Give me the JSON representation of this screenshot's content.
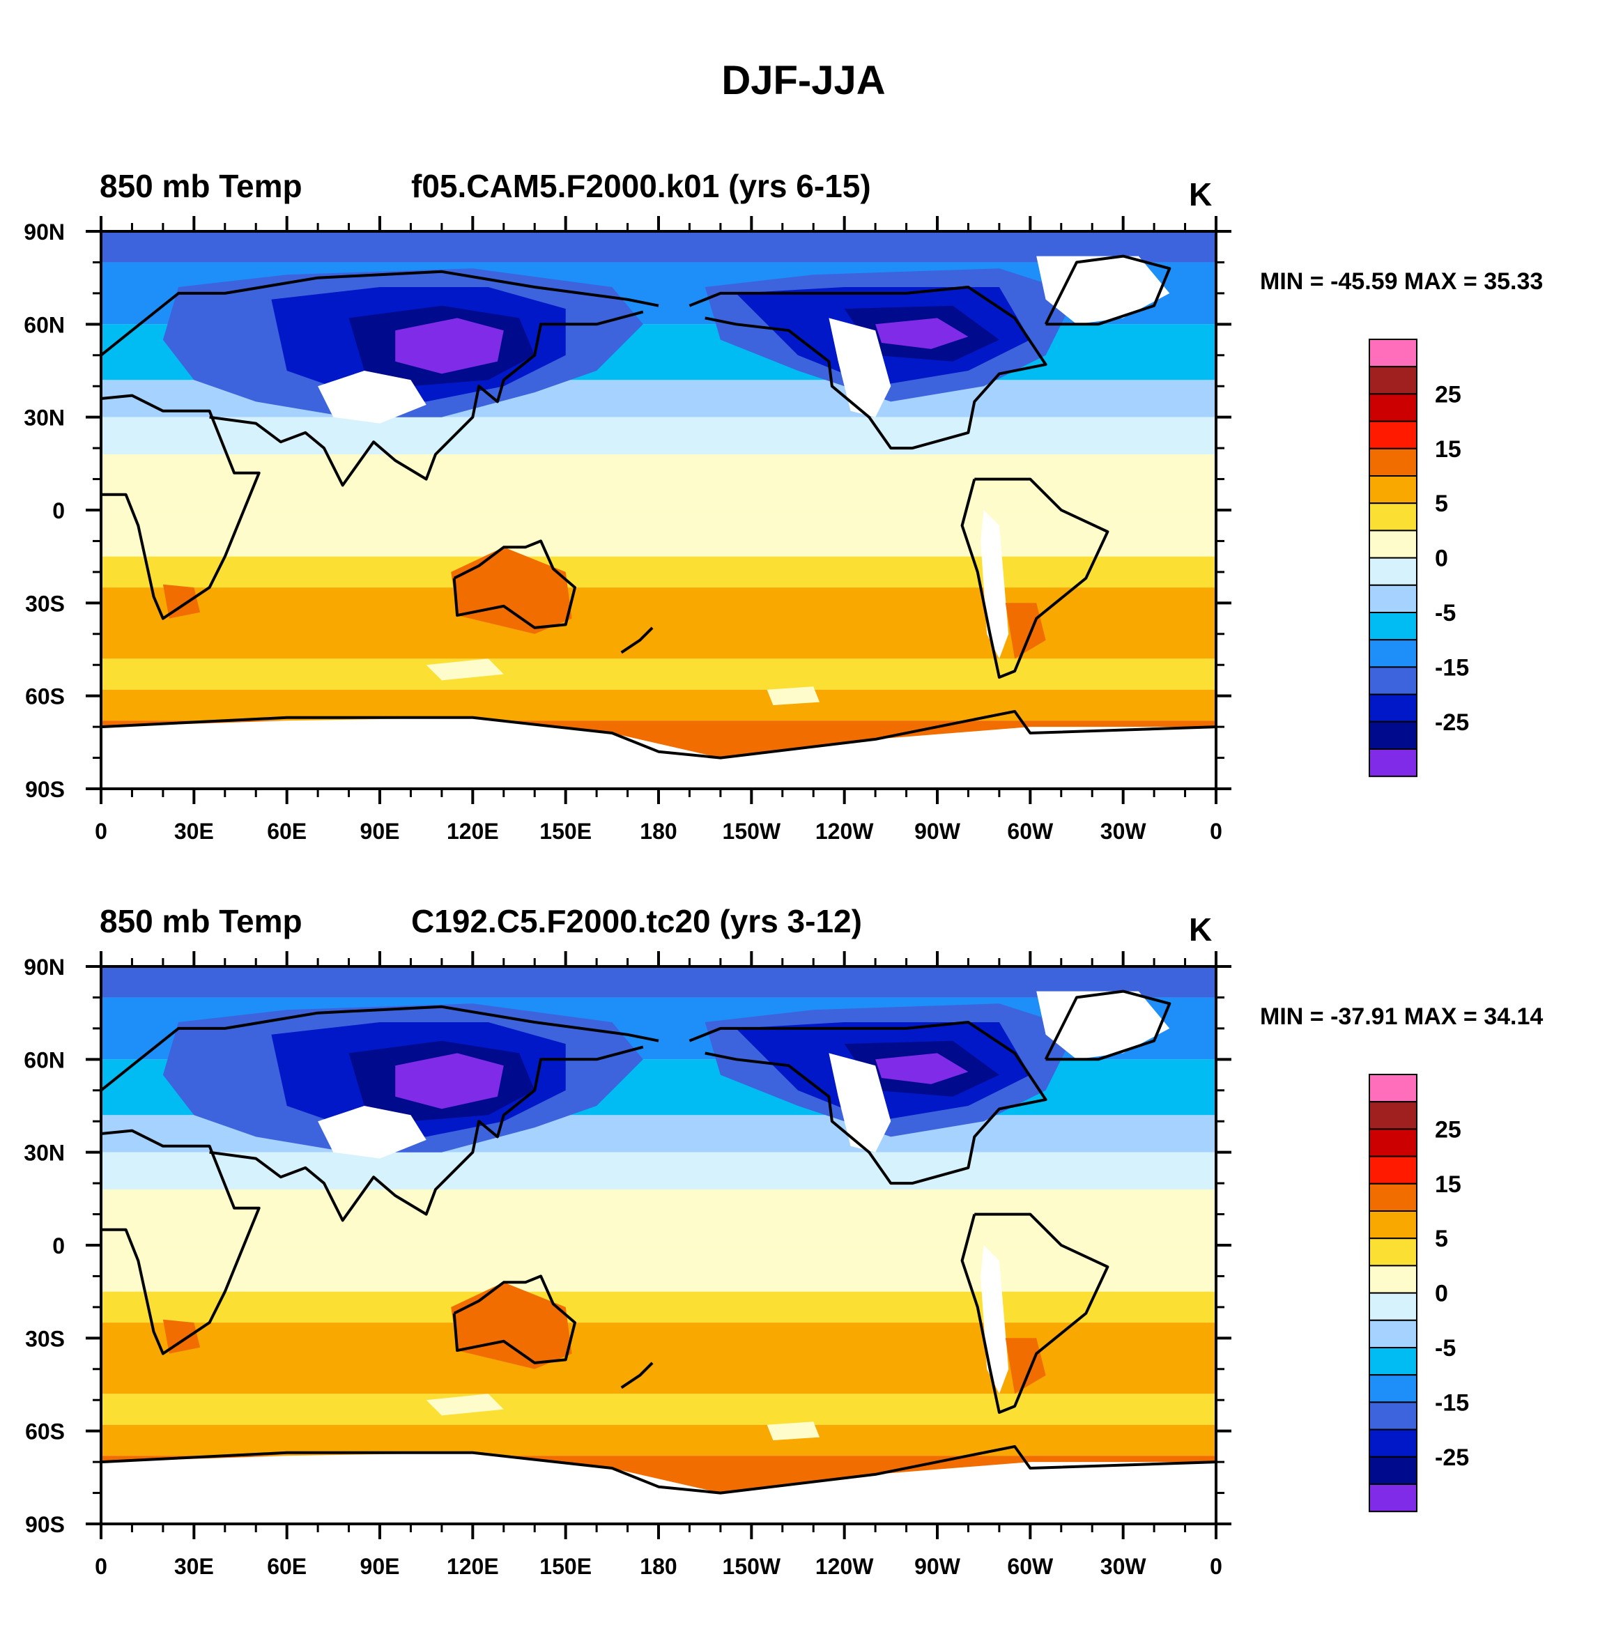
{
  "title": "DJF-JJA",
  "palette": [
    "#7f2be8",
    "#000a8c",
    "#0018c8",
    "#3d63dd",
    "#1e8ef8",
    "#00bcf2",
    "#a6d2ff",
    "#d6f2fc",
    "#fffccc",
    "#fbe033",
    "#f9a800",
    "#f26d00",
    "#ff1a00",
    "#cc0000",
    "#a02020",
    "#ff6ebb"
  ],
  "colorbar_labels": [
    "25",
    "15",
    "5",
    "0",
    "-5",
    "-15",
    "-25"
  ],
  "x_ticks": [
    "0",
    "30E",
    "60E",
    "90E",
    "120E",
    "150E",
    "180",
    "150W",
    "120W",
    "90W",
    "60W",
    "30W",
    "0"
  ],
  "y_ticks": [
    "90N",
    "60N",
    "30N",
    "0",
    "30S",
    "60S",
    "90S"
  ],
  "panels": [
    {
      "variable": "850 mb Temp",
      "case": "f05.CAM5.F2000.k01 (yrs 6-15)",
      "units": "K",
      "minmax": "MIN = -45.59 MAX =  35.33"
    },
    {
      "variable": "850 mb Temp",
      "case": "C192.C5.F2000.tc20 (yrs 3-12)",
      "units": "K",
      "minmax": "MIN = -37.91 MAX =  34.14"
    }
  ]
}
